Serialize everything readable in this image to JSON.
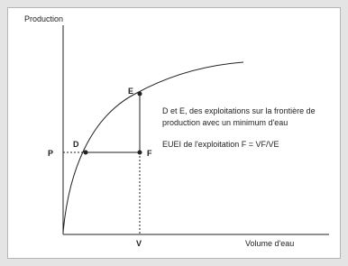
{
  "axes": {
    "y_label": "Production",
    "x_label": "Volume d'eau"
  },
  "points": {
    "p": "P",
    "v": "V",
    "d": "D",
    "e": "E",
    "f": "F"
  },
  "annotation": {
    "lines": [
      "D et E, des exploitations sur la frontière de",
      "production avec un minimum d'eau"
    ],
    "formula": "EUEI de l'exploitation F = VF/VE"
  }
}
